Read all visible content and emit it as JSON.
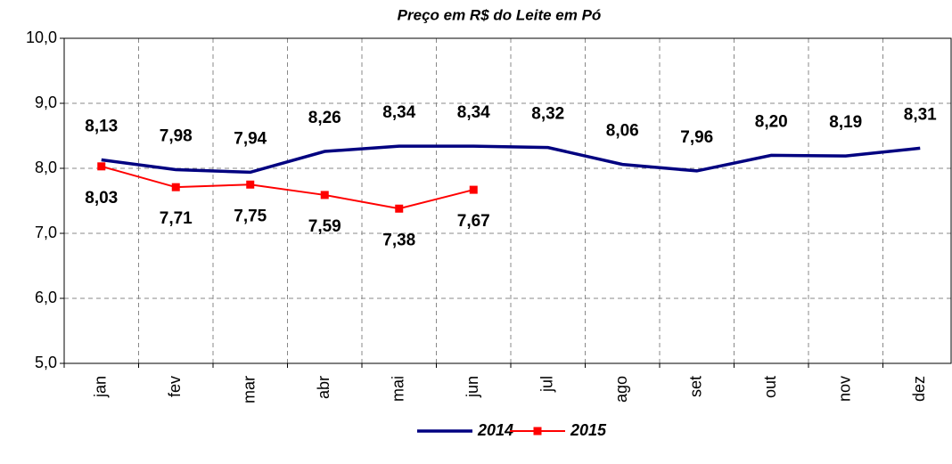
{
  "chart_data": {
    "type": "line",
    "title": "Preço em R$ do Leite em Pó",
    "categories": [
      "jan",
      "fev",
      "mar",
      "abr",
      "mai",
      "jun",
      "jul",
      "ago",
      "set",
      "out",
      "nov",
      "dez"
    ],
    "series": [
      {
        "name": "2014",
        "color": "#000080",
        "marker": "none",
        "values": [
          8.13,
          7.98,
          7.94,
          8.26,
          8.34,
          8.34,
          8.32,
          8.06,
          7.96,
          8.2,
          8.19,
          8.31
        ],
        "value_labels": [
          "8,13",
          "7,98",
          "7,94",
          "8,26",
          "8,34",
          "8,34",
          "8,32",
          "8,06",
          "7,96",
          "8,20",
          "8,19",
          "8,31"
        ]
      },
      {
        "name": "2015",
        "color": "#ff0000",
        "marker": "square",
        "values": [
          8.03,
          7.71,
          7.75,
          7.59,
          7.38,
          7.67,
          null,
          null,
          null,
          null,
          null,
          null
        ],
        "value_labels": [
          "8,03",
          "7,71",
          "7,75",
          "7,59",
          "7,38",
          "7,67",
          null,
          null,
          null,
          null,
          null,
          null
        ]
      }
    ],
    "ylim": [
      5,
      10
    ],
    "yticks": [
      {
        "value": 5,
        "label": "5,0"
      },
      {
        "value": 6,
        "label": "6,0"
      },
      {
        "value": 7,
        "label": "7,0"
      },
      {
        "value": 8,
        "label": "8,0"
      },
      {
        "value": 9,
        "label": "9,0"
      },
      {
        "value": 10,
        "label": "10,0"
      }
    ],
    "grid": true,
    "legend": "bottom"
  }
}
